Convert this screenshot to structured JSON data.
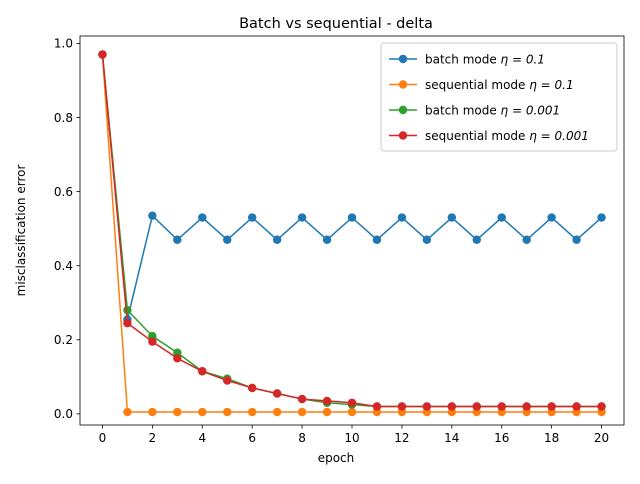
{
  "chart_data": {
    "type": "line",
    "title": "Batch vs sequential - delta",
    "xlabel": "epoch",
    "ylabel": "misclassification error",
    "xlim": [
      -0.9,
      20.9
    ],
    "ylim": [
      -0.03,
      1.02
    ],
    "xticks": [
      0,
      2,
      4,
      6,
      8,
      10,
      12,
      14,
      16,
      18,
      20
    ],
    "yticks": [
      0.0,
      0.2,
      0.4,
      0.6,
      0.8,
      1.0
    ],
    "ytick_labels": [
      "0.0",
      "0.2",
      "0.4",
      "0.6",
      "0.8",
      "1.0"
    ],
    "grid": false,
    "legend_position": "upper right",
    "x": [
      0,
      1,
      2,
      3,
      4,
      5,
      6,
      7,
      8,
      9,
      10,
      11,
      12,
      13,
      14,
      15,
      16,
      17,
      18,
      19,
      20
    ],
    "series": [
      {
        "name": "batch mode",
        "eta": "η = 0.1",
        "color": "#1f77b4",
        "values": [
          0.97,
          0.255,
          0.535,
          0.47,
          0.53,
          0.47,
          0.53,
          0.47,
          0.53,
          0.47,
          0.53,
          0.47,
          0.53,
          0.47,
          0.53,
          0.47,
          0.53,
          0.47,
          0.53,
          0.47,
          0.53
        ]
      },
      {
        "name": "sequential mode",
        "eta": "η = 0.1",
        "color": "#ff7f0e",
        "values": [
          0.97,
          0.005,
          0.005,
          0.005,
          0.005,
          0.005,
          0.005,
          0.005,
          0.005,
          0.005,
          0.005,
          0.005,
          0.005,
          0.005,
          0.005,
          0.005,
          0.005,
          0.005,
          0.005,
          0.005,
          0.005
        ]
      },
      {
        "name": "batch mode",
        "eta": "η = 0.001",
        "color": "#2ca02c",
        "values": [
          0.97,
          0.28,
          0.21,
          0.165,
          0.115,
          0.095,
          0.07,
          0.055,
          0.04,
          0.03,
          0.025,
          0.02,
          0.02,
          0.02,
          0.02,
          0.02,
          0.02,
          0.02,
          0.02,
          0.02,
          0.02
        ]
      },
      {
        "name": "sequential mode",
        "eta": "η = 0.001",
        "color": "#d62728",
        "values": [
          0.97,
          0.245,
          0.195,
          0.15,
          0.115,
          0.09,
          0.07,
          0.055,
          0.04,
          0.035,
          0.03,
          0.02,
          0.02,
          0.02,
          0.02,
          0.02,
          0.02,
          0.02,
          0.02,
          0.02,
          0.02
        ]
      }
    ]
  }
}
